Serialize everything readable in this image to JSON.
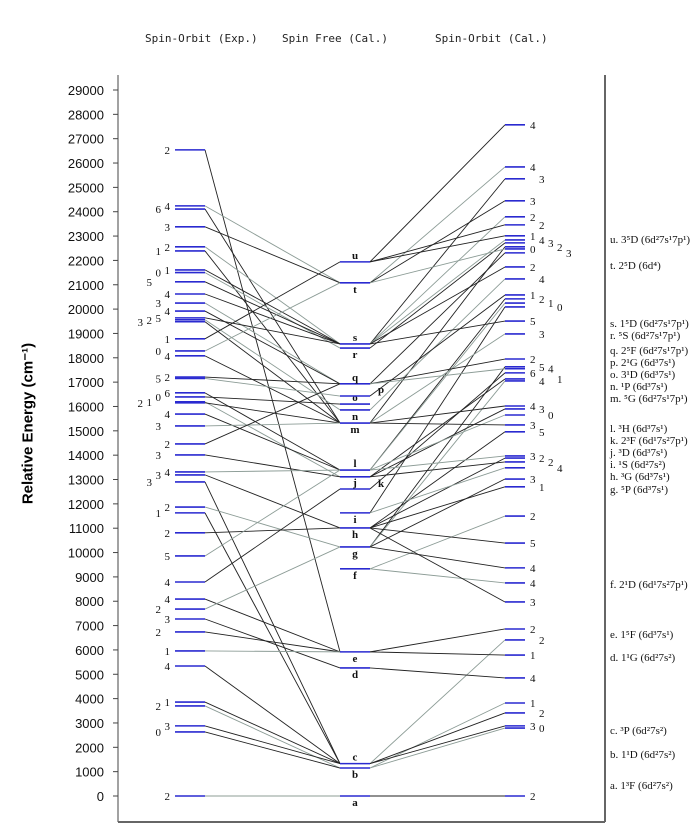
{
  "headers": {
    "exp": "Spin-Orbit (Exp.)",
    "sf": "Spin Free (Cal.)",
    "so": "Spin-Orbit (Cal.)"
  },
  "y_axis": {
    "label": "Relative Energy (cm⁻¹)",
    "min": 0,
    "max": 29000,
    "step": 1000,
    "ticks": [
      "0",
      "1000",
      "2000",
      "3000",
      "4000",
      "5000",
      "6000",
      "7000",
      "8000",
      "9000",
      "10000",
      "11000",
      "12000",
      "13000",
      "14000",
      "15000",
      "16000",
      "17000",
      "18000",
      "19000",
      "20000",
      "21000",
      "22000",
      "23000",
      "24000",
      "25000",
      "26000",
      "27000",
      "28000",
      "29000"
    ]
  },
  "colors": {
    "level": "#2a2ad0",
    "line_dark": "#222222",
    "line_gray": "#8c9c96"
  },
  "spin_free": [
    {
      "id": "a",
      "E": 0
    },
    {
      "id": "b",
      "E": 1150
    },
    {
      "id": "c",
      "E": 1330
    },
    {
      "id": "d",
      "E": 5260
    },
    {
      "id": "e",
      "E": 5920
    },
    {
      "id": "f",
      "E": 9330
    },
    {
      "id": "g",
      "E": 10230
    },
    {
      "id": "h",
      "E": 11010
    },
    {
      "id": "i",
      "E": 11630
    },
    {
      "id": "j",
      "E": 12610
    },
    {
      "id": "k",
      "E": 13110
    },
    {
      "id": "l",
      "E": 13390
    },
    {
      "id": "m",
      "E": 15320
    },
    {
      "id": "n",
      "E": 15860
    },
    {
      "id": "o",
      "E": 16100
    },
    {
      "id": "p",
      "E": 16430
    },
    {
      "id": "q",
      "E": 16930
    },
    {
      "id": "r",
      "E": 18400
    },
    {
      "id": "s",
      "E": 18570
    },
    {
      "id": "t",
      "E": 21080
    },
    {
      "id": "u",
      "E": 21940
    }
  ],
  "exp_levels": [
    {
      "E": 26540,
      "J": "2",
      "t": "e"
    },
    {
      "E": 24240,
      "J": "4",
      "t": "t"
    },
    {
      "E": 24110,
      "J": "6",
      "t": "m"
    },
    {
      "E": 23380,
      "J": "3",
      "t": "t"
    },
    {
      "E": 22560,
      "J": "2",
      "t": "s"
    },
    {
      "E": 22390,
      "J": "1",
      "t": "m"
    },
    {
      "E": 21610,
      "J": "1",
      "t": "s"
    },
    {
      "E": 21500,
      "J": "0",
      "t": "r"
    },
    {
      "E": 21120,
      "J": "5",
      "t": "s"
    },
    {
      "E": 20620,
      "J": "4",
      "t": "s"
    },
    {
      "E": 20250,
      "J": "3",
      "t": "q"
    },
    {
      "E": 19920,
      "J": "4",
      "t": "q"
    },
    {
      "E": 19640,
      "J": "5",
      "t": "s"
    },
    {
      "E": 19560,
      "J": "2",
      "t": "n"
    },
    {
      "E": 19480,
      "J": "3",
      "t": "m"
    },
    {
      "E": 18780,
      "J": "1",
      "t": "u"
    },
    {
      "E": 18280,
      "J": "0",
      "t": "t"
    },
    {
      "E": 18080,
      "J": "4",
      "t": "m"
    },
    {
      "E": 17210,
      "J": "2",
      "t": "q"
    },
    {
      "E": 17150,
      "J": "5",
      "t": "p"
    },
    {
      "E": 16560,
      "J": "6",
      "t": "l"
    },
    {
      "E": 16390,
      "J": "0",
      "t": "o"
    },
    {
      "E": 16190,
      "J": "1",
      "t": "k"
    },
    {
      "E": 16150,
      "J": "2",
      "t": "m"
    },
    {
      "E": 15690,
      "J": "4",
      "t": "l"
    },
    {
      "E": 15200,
      "J": "3",
      "t": "m"
    },
    {
      "E": 14460,
      "J": "2",
      "t": "q"
    },
    {
      "E": 14010,
      "J": "3",
      "t": "k"
    },
    {
      "E": 13310,
      "J": "4",
      "t": "l"
    },
    {
      "E": 13190,
      "J": "3",
      "t": "h"
    },
    {
      "E": 12900,
      "J": "3",
      "t": "c"
    },
    {
      "E": 11870,
      "J": "2",
      "t": "g"
    },
    {
      "E": 11630,
      "J": "1",
      "t": "c"
    },
    {
      "E": 10810,
      "J": "2",
      "t": "h"
    },
    {
      "E": 9860,
      "J": "5",
      "t": "l"
    },
    {
      "E": 8790,
      "J": "4",
      "t": "j"
    },
    {
      "E": 8090,
      "J": "4",
      "t": "e"
    },
    {
      "E": 7680,
      "J": "2",
      "t": "g"
    },
    {
      "E": 7270,
      "J": "3",
      "t": "d"
    },
    {
      "E": 6740,
      "J": "2",
      "t": "e"
    },
    {
      "E": 5960,
      "J": "1",
      "t": "e"
    },
    {
      "E": 5340,
      "J": "4",
      "t": "c"
    },
    {
      "E": 3860,
      "J": "1",
      "t": "c"
    },
    {
      "E": 3700,
      "J": "2",
      "t": "b"
    },
    {
      "E": 2880,
      "J": "3",
      "t": "c"
    },
    {
      "E": 2630,
      "J": "0",
      "t": "b"
    },
    {
      "E": 0,
      "J": "2",
      "t": "a"
    }
  ],
  "so_levels": [
    {
      "E": 27570,
      "J": "4",
      "t": "u"
    },
    {
      "E": 25840,
      "J": "4",
      "t": "t"
    },
    {
      "E": 25350,
      "J": "3",
      "t": "s"
    },
    {
      "E": 24450,
      "J": "3",
      "t": "t"
    },
    {
      "E": 23790,
      "J": "2",
      "t": "s"
    },
    {
      "E": 23460,
      "J": "2",
      "t": "u"
    },
    {
      "E": 23010,
      "J": "1",
      "t": "u"
    },
    {
      "E": 22840,
      "J": "4",
      "t": "s"
    },
    {
      "E": 22720,
      "J": "3",
      "t": "r"
    },
    {
      "E": 22560,
      "J": "2",
      "t": "m"
    },
    {
      "E": 22470,
      "J": "0",
      "t": "t"
    },
    {
      "E": 22310,
      "J": "3",
      "t": "q"
    },
    {
      "E": 21730,
      "J": "2",
      "t": "s"
    },
    {
      "E": 21240,
      "J": "4",
      "t": "n"
    },
    {
      "E": 20580,
      "J": "1",
      "t": "p"
    },
    {
      "E": 20420,
      "J": "2",
      "t": "l"
    },
    {
      "E": 20250,
      "J": "1",
      "t": "l"
    },
    {
      "E": 20090,
      "J": "0",
      "t": "i"
    },
    {
      "E": 19510,
      "J": "5",
      "t": "s"
    },
    {
      "E": 18980,
      "J": "3",
      "t": "m"
    },
    {
      "E": 17950,
      "J": "2",
      "t": "q"
    },
    {
      "E": 17630,
      "J": "5",
      "t": "g"
    },
    {
      "E": 17550,
      "J": "4",
      "t": "q"
    },
    {
      "E": 17380,
      "J": "6",
      "t": "j"
    },
    {
      "E": 17130,
      "J": "1",
      "t": "k"
    },
    {
      "E": 17050,
      "J": "4",
      "t": "g"
    },
    {
      "E": 16020,
      "J": "4",
      "t": "m"
    },
    {
      "E": 15900,
      "J": "3",
      "t": "k"
    },
    {
      "E": 15650,
      "J": "0",
      "t": "l"
    },
    {
      "E": 15240,
      "J": "3",
      "t": "m"
    },
    {
      "E": 14960,
      "J": "5",
      "t": "h"
    },
    {
      "E": 13970,
      "J": "3",
      "t": "l"
    },
    {
      "E": 13880,
      "J": "2",
      "t": "h"
    },
    {
      "E": 13720,
      "J": "2",
      "t": "k"
    },
    {
      "E": 13480,
      "J": "4",
      "t": "i"
    },
    {
      "E": 13020,
      "J": "3",
      "t": "g"
    },
    {
      "E": 12700,
      "J": "1",
      "t": "h"
    },
    {
      "E": 11500,
      "J": "2",
      "t": "f"
    },
    {
      "E": 10390,
      "J": "5",
      "t": "h"
    },
    {
      "E": 9370,
      "J": "4",
      "t": "g"
    },
    {
      "E": 8750,
      "J": "4",
      "t": "f"
    },
    {
      "E": 7970,
      "J": "3",
      "t": "h"
    },
    {
      "E": 6860,
      "J": "2",
      "t": "e"
    },
    {
      "E": 6410,
      "J": "2",
      "t": "c"
    },
    {
      "E": 5790,
      "J": "1",
      "t": "e"
    },
    {
      "E": 4850,
      "J": "4",
      "t": "d"
    },
    {
      "E": 3820,
      "J": "1",
      "t": "b"
    },
    {
      "E": 3410,
      "J": "2",
      "t": "c"
    },
    {
      "E": 2880,
      "J": "3",
      "t": "c"
    },
    {
      "E": 2790,
      "J": "0",
      "t": "b"
    },
    {
      "E": 0,
      "J": "2",
      "t": "a"
    }
  ],
  "states": [
    "u. 3⁵D (6d²7s¹7p¹)",
    "t. 2⁵D (6d⁴)",
    "s. 1⁵D (6d²7s¹7p¹)",
    "r. ⁵S (6d²7s¹7p¹)",
    "q. 2⁵F (6d²7s¹7p¹)",
    "p. 2¹G (6d³7s¹)",
    "o. 3¹D (6d³7s¹)",
    "n. ¹P (6d³7s¹)",
    "m. ⁵G (6d²7s¹7p¹)",
    "l. ³H (6d³7s¹)",
    "k. 2³F (6d¹7s²7p¹)",
    "j. ³D (6d³7s¹)",
    "i. ¹S (6d²7s²)",
    "h. ³G (6d³7s¹)",
    "g. ⁵P (6d³7s¹)",
    "f. 2¹D (6d¹7s²7p¹)",
    "e. 1⁵F (6d³7s¹)",
    "d. 1¹G (6d²7s²)",
    "c. ³P (6d²7s²)",
    "b. 1¹D (6d²7s²)",
    "a. 1³F (6d²7s²)"
  ]
}
